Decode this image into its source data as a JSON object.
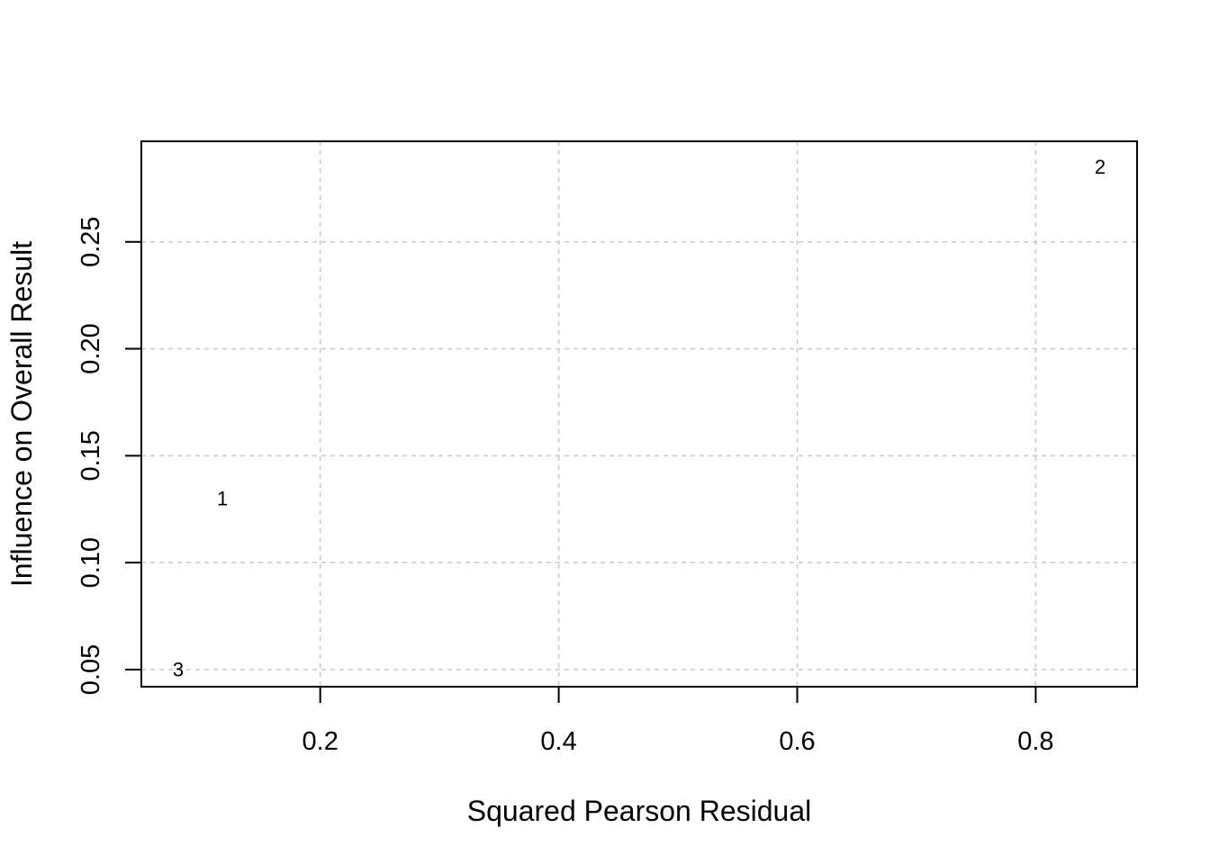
{
  "chart_data": {
    "type": "scatter",
    "title": "",
    "xlabel": "Squared Pearson Residual",
    "ylabel": "Influence on Overall Result",
    "xlim": [
      0.05,
      0.885
    ],
    "ylim": [
      0.042,
      0.297
    ],
    "x_ticks": [
      0.2,
      0.4,
      0.6,
      0.8
    ],
    "x_tick_labels": [
      "0.2",
      "0.4",
      "0.6",
      "0.8"
    ],
    "y_ticks": [
      0.05,
      0.1,
      0.15,
      0.2,
      0.25
    ],
    "y_tick_labels": [
      "0.05",
      "0.10",
      "0.15",
      "0.20",
      "0.25"
    ],
    "grid": true,
    "points": [
      {
        "label": "1",
        "x": 0.118,
        "y": 0.13
      },
      {
        "label": "2",
        "x": 0.854,
        "y": 0.285
      },
      {
        "label": "3",
        "x": 0.081,
        "y": 0.05
      }
    ]
  }
}
